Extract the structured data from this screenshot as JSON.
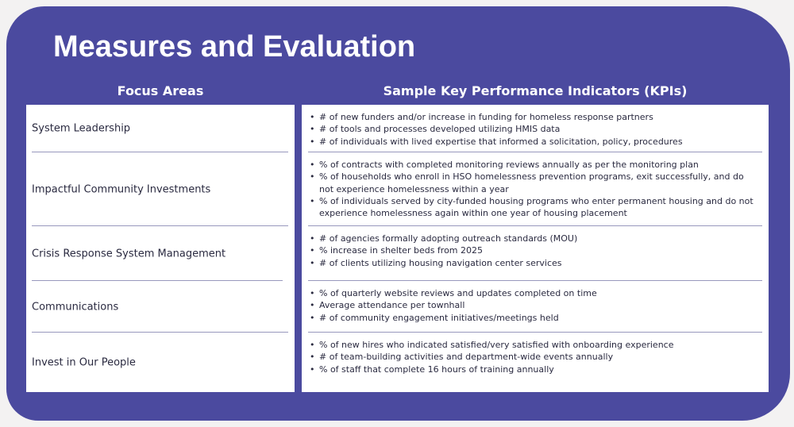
{
  "header": {
    "title": "Measures and Evaluation"
  },
  "table": {
    "columns": [
      "Focus Areas",
      "Sample Key Performance Indicators (KPIs)"
    ],
    "rows": [
      {
        "focus": "System Leadership",
        "kpis": [
          "# of new funders and/or increase in funding for homeless response partners",
          "# of tools and processes developed utilizing HMIS data",
          "# of individuals with lived expertise that informed a solicitation, policy, procedures"
        ]
      },
      {
        "focus": "Impactful Community Investments",
        "kpis": [
          "% of contracts with completed monitoring reviews annually as per the monitoring plan",
          "% of households who enroll in HSO homelessness prevention programs, exit successfully, and do not experience homelessness within a year",
          "% of individuals served by city-funded housing programs who enter permanent housing and do not experience homelessness again within one year of housing placement"
        ]
      },
      {
        "focus": "Crisis Response System Management",
        "kpis": [
          "# of agencies formally adopting outreach standards (MOU)",
          "% increase in shelter beds from 2025",
          "# of clients utilizing housing navigation center services"
        ]
      },
      {
        "focus": "Communications",
        "kpis": [
          "% of quarterly website reviews and updates completed on time",
          "Average attendance per townhall",
          "# of community engagement initiatives/meetings held"
        ]
      },
      {
        "focus": "Invest in Our People",
        "kpis": [
          "% of new hires who indicated satisfied/very satisfied with onboarding experience",
          "# of team-building activities and department-wide events annually",
          "% of staff that complete 16 hours of training annually"
        ]
      }
    ]
  }
}
